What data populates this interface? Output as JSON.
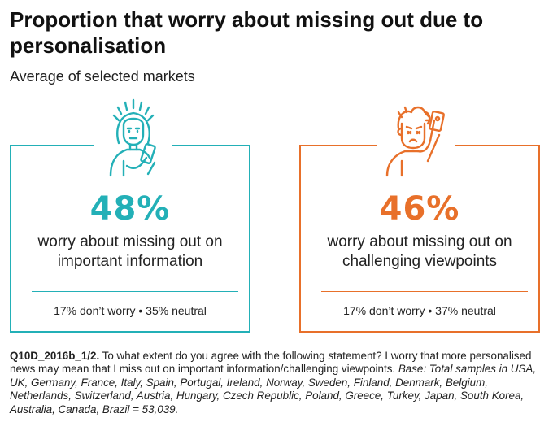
{
  "title": "Proportion that worry about missing out due to personalisation",
  "subtitle": "Average of selected markets",
  "colors": {
    "teal": "#23b0b7",
    "orange": "#e8702a"
  },
  "cards": [
    {
      "icon": "woman-phone-icon",
      "percent": "48%",
      "description": "worry about missing out on important information",
      "stats": "17% don’t worry • 35% neutral"
    },
    {
      "icon": "man-selfie-icon",
      "percent": "46%",
      "description": "worry about missing out on challenging viewpoints",
      "stats": "17% don’t worry • 37% neutral"
    }
  ],
  "note": {
    "code": "Q10D_2016b_1/2.",
    "question": " To what extent do you agree with the following statement? I worry that more personalised news may mean that I miss out on important information/challenging viewpoints.",
    "base": " Base: Total samples in USA, UK, Germany, France, Italy, Spain, Portugal, Ireland, Norway, Sweden, Finland, Denmark, Belgium, Netherlands, Switzerland, Austria, Hungary, Czech Republic, Poland, Greece, Turkey, Japan, South Korea, Australia, Canada, Brazil = 53,039."
  },
  "chart_data": {
    "type": "table",
    "title": "Proportion that worry about missing out due to personalisation",
    "subtitle": "Average of selected markets",
    "categories": [
      "worry about missing out on important information",
      "worry about missing out on challenging viewpoints"
    ],
    "series": [
      {
        "name": "worry",
        "values": [
          48,
          46
        ]
      },
      {
        "name": "don’t worry",
        "values": [
          17,
          17
        ]
      },
      {
        "name": "neutral",
        "values": [
          35,
          37
        ]
      }
    ]
  }
}
